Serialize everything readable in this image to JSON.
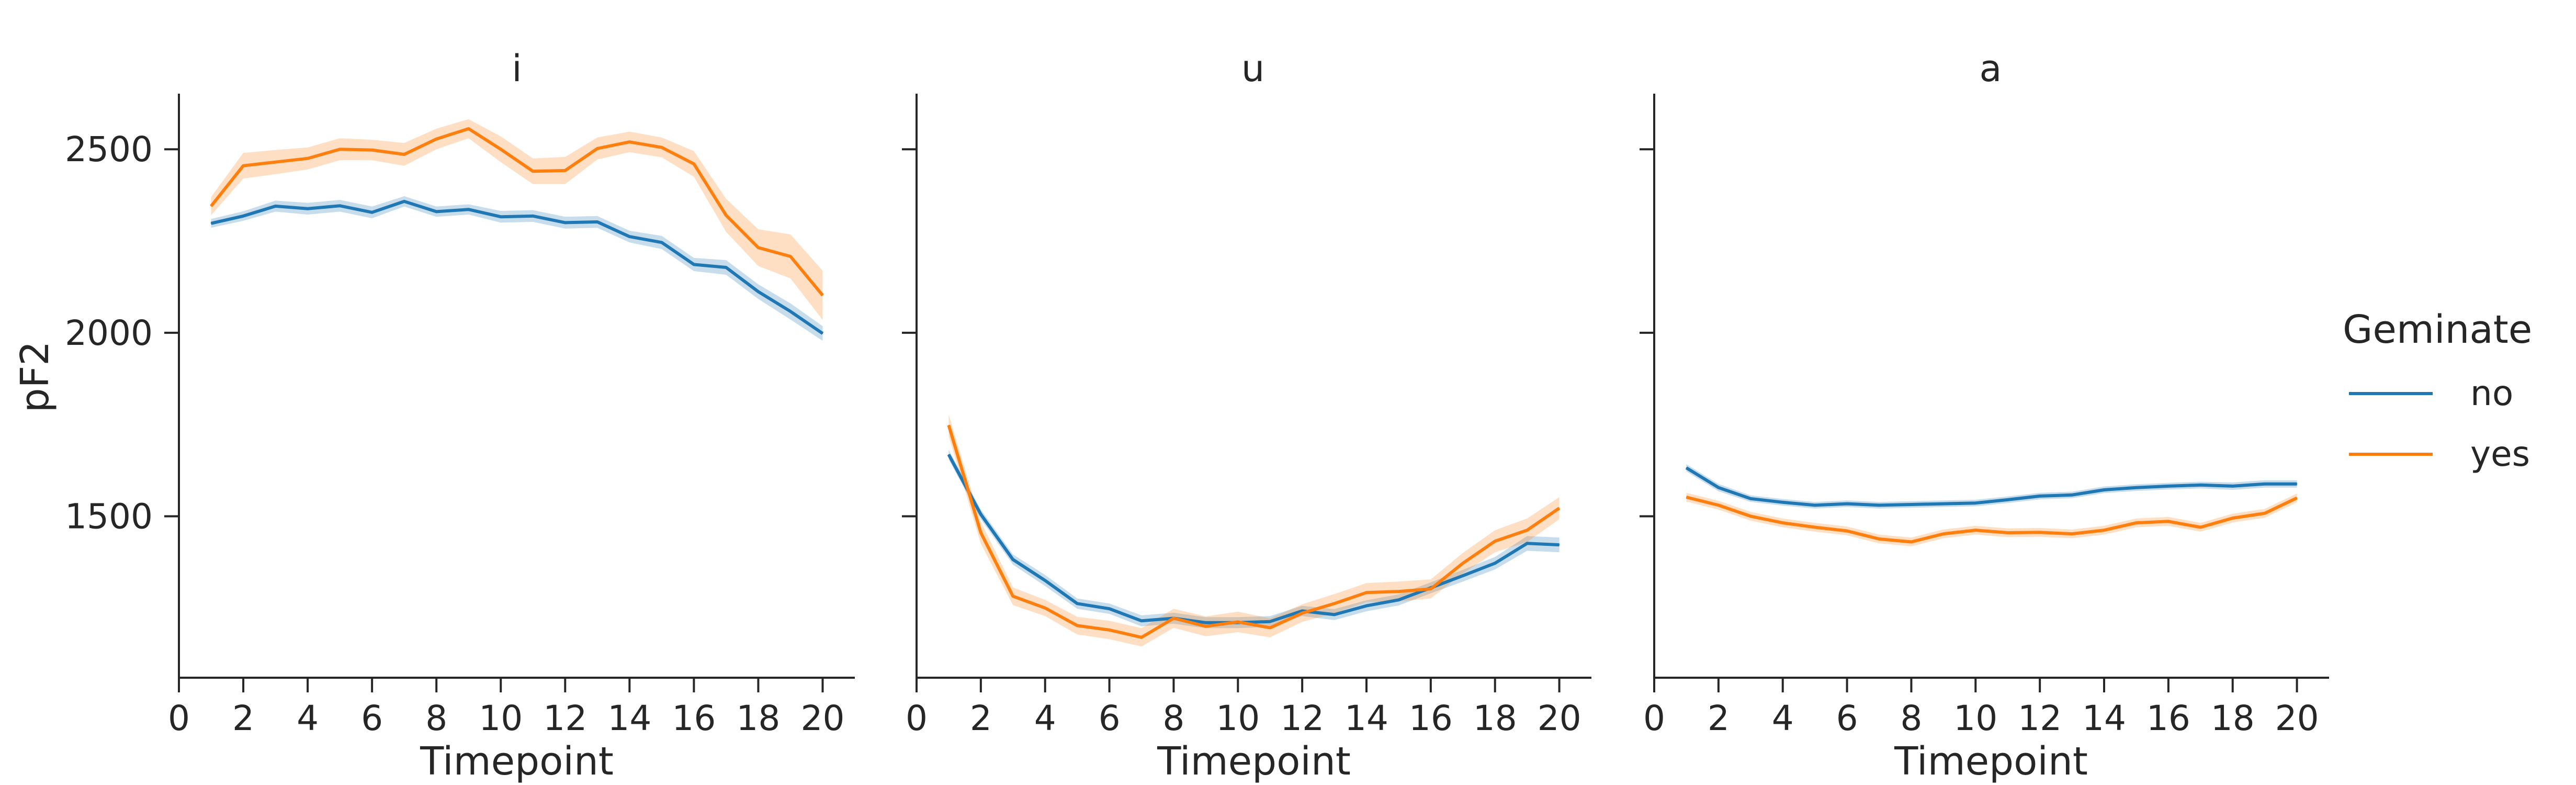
{
  "chart_data": {
    "type": "line",
    "ylabel": "pF2",
    "xlabel": "Timepoint",
    "x": [
      1,
      2,
      3,
      4,
      5,
      6,
      7,
      8,
      9,
      10,
      11,
      12,
      13,
      14,
      15,
      16,
      17,
      18,
      19,
      20
    ],
    "xlim": [
      0,
      21
    ],
    "ylim": [
      1060,
      2650
    ],
    "xticks": [
      0,
      2,
      4,
      6,
      8,
      10,
      12,
      14,
      16,
      18,
      20
    ],
    "yticks": [
      1500,
      2000,
      2500
    ],
    "legend": {
      "title": "Geminate",
      "placement": "right"
    },
    "colors": {
      "no": "#1f77b4",
      "yes": "#ff7f0e"
    },
    "panels": [
      {
        "title": "i",
        "series": [
          {
            "name": "no",
            "values": [
              2298,
              2318,
              2345,
              2338,
              2346,
              2328,
              2358,
              2330,
              2336,
              2316,
              2318,
              2300,
              2302,
              2262,
              2246,
              2186,
              2178,
              2112,
              2058,
              1998
            ],
            "lower": [
              2286,
              2305,
              2330,
              2322,
              2330,
              2312,
              2344,
              2316,
              2322,
              2300,
              2302,
              2284,
              2286,
              2246,
              2228,
              2168,
              2158,
              2092,
              2036,
              1978
            ],
            "upper": [
              2310,
              2331,
              2360,
              2354,
              2362,
              2344,
              2372,
              2344,
              2350,
              2332,
              2334,
              2316,
              2318,
              2278,
              2264,
              2204,
              2198,
              2132,
              2080,
              2018
            ]
          },
          {
            "name": "yes",
            "values": [
              2345,
              2455,
              2465,
              2475,
              2500,
              2498,
              2486,
              2528,
              2556,
              2500,
              2440,
              2442,
              2502,
              2520,
              2505,
              2460,
              2320,
              2232,
              2208,
              2102
            ],
            "lower": [
              2320,
              2420,
              2432,
              2445,
              2470,
              2470,
              2455,
              2500,
              2530,
              2465,
              2405,
              2405,
              2472,
              2492,
              2478,
              2425,
              2275,
              2182,
              2148,
              2035
            ],
            "upper": [
              2370,
              2490,
              2498,
              2505,
              2530,
              2526,
              2517,
              2556,
              2582,
              2535,
              2475,
              2479,
              2532,
              2548,
              2532,
              2495,
              2365,
              2282,
              2268,
              2169
            ]
          }
        ]
      },
      {
        "title": "u",
        "series": [
          {
            "name": "no",
            "values": [
              1668,
              1505,
              1382,
              1325,
              1262,
              1248,
              1215,
              1222,
              1210,
              1210,
              1213,
              1242,
              1232,
              1256,
              1272,
              1305,
              1338,
              1372,
              1426,
              1422
            ],
            "lower": [
              1655,
              1492,
              1368,
              1310,
              1248,
              1234,
              1200,
              1207,
              1195,
              1195,
              1198,
              1228,
              1217,
              1241,
              1257,
              1290,
              1322,
              1355,
              1406,
              1402
            ],
            "upper": [
              1681,
              1518,
              1396,
              1340,
              1276,
              1262,
              1230,
              1237,
              1225,
              1225,
              1228,
              1256,
              1247,
              1271,
              1287,
              1320,
              1354,
              1389,
              1446,
              1442
            ]
          },
          {
            "name": "yes",
            "values": [
              1748,
              1455,
              1282,
              1250,
              1202,
              1190,
              1170,
              1222,
              1200,
              1212,
              1196,
              1236,
              1262,
              1292,
              1295,
              1302,
              1372,
              1432,
              1462,
              1522
            ],
            "lower": [
              1718,
              1425,
              1258,
              1228,
              1178,
              1165,
              1145,
              1196,
              1173,
              1184,
              1170,
              1212,
              1236,
              1266,
              1268,
              1276,
              1344,
              1402,
              1430,
              1492
            ],
            "upper": [
              1778,
              1485,
              1306,
              1272,
              1226,
              1215,
              1195,
              1248,
              1227,
              1240,
              1222,
              1260,
              1288,
              1318,
              1322,
              1328,
              1400,
              1462,
              1494,
              1552
            ]
          }
        ]
      },
      {
        "title": "a",
        "series": [
          {
            "name": "no",
            "values": [
              1632,
              1578,
              1548,
              1538,
              1530,
              1534,
              1530,
              1532,
              1534,
              1536,
              1545,
              1555,
              1558,
              1572,
              1578,
              1582,
              1585,
              1582,
              1588,
              1588
            ],
            "lower": [
              1622,
              1568,
              1539,
              1529,
              1521,
              1525,
              1521,
              1523,
              1525,
              1527,
              1536,
              1546,
              1549,
              1563,
              1569,
              1573,
              1576,
              1572,
              1578,
              1578
            ],
            "upper": [
              1642,
              1588,
              1557,
              1547,
              1539,
              1543,
              1539,
              1541,
              1543,
              1545,
              1554,
              1564,
              1567,
              1581,
              1587,
              1591,
              1594,
              1592,
              1598,
              1598
            ]
          },
          {
            "name": "yes",
            "values": [
              1552,
              1530,
              1500,
              1482,
              1470,
              1460,
              1438,
              1430,
              1452,
              1462,
              1455,
              1456,
              1452,
              1462,
              1482,
              1486,
              1470,
              1495,
              1508,
              1550
            ],
            "lower": [
              1540,
              1518,
              1488,
              1470,
              1458,
              1448,
              1426,
              1418,
              1440,
              1450,
              1443,
              1444,
              1440,
              1450,
              1470,
              1474,
              1458,
              1483,
              1496,
              1538
            ],
            "upper": [
              1564,
              1542,
              1512,
              1494,
              1482,
              1472,
              1450,
              1442,
              1464,
              1474,
              1467,
              1468,
              1464,
              1474,
              1494,
              1498,
              1482,
              1507,
              1520,
              1562
            ]
          }
        ]
      }
    ]
  }
}
